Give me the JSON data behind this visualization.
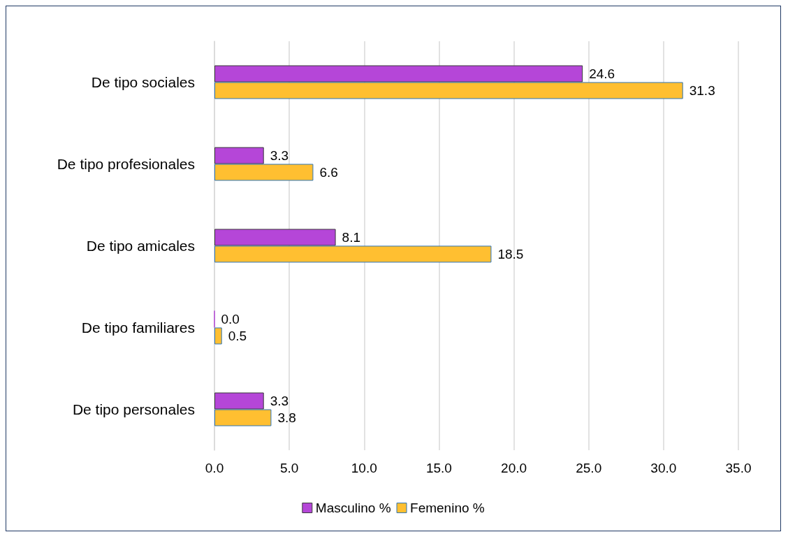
{
  "chart_data": {
    "type": "bar",
    "orientation": "horizontal",
    "categories": [
      "De tipo sociales",
      "De tipo profesionales",
      "De tipo amicales",
      "De tipo familiares",
      "De tipo personales"
    ],
    "series": [
      {
        "name": "Masculino %",
        "color": "#b546d8",
        "values": [
          24.6,
          3.3,
          8.1,
          0.0,
          3.3
        ],
        "value_labels": [
          "24.6",
          "3.3",
          "8.1",
          "0.0",
          "3.3"
        ]
      },
      {
        "name": "Femenino %",
        "color": "#ffbf31",
        "values": [
          31.3,
          6.6,
          18.5,
          0.5,
          3.8
        ],
        "value_labels": [
          "31.3",
          "6.6",
          "18.5",
          "0.5",
          "3.8"
        ]
      }
    ],
    "xlim": [
      0,
      35
    ],
    "xticks": [
      {
        "value": 0,
        "label": "0.0"
      },
      {
        "value": 5,
        "label": "5.0"
      },
      {
        "value": 10,
        "label": "10.0"
      },
      {
        "value": 15,
        "label": "15.0"
      },
      {
        "value": 20,
        "label": "20.0"
      },
      {
        "value": 25,
        "label": "25.0"
      },
      {
        "value": 30,
        "label": "30.0"
      },
      {
        "value": 35,
        "label": "35.0"
      }
    ],
    "grid": "x",
    "legend": "bottom"
  }
}
